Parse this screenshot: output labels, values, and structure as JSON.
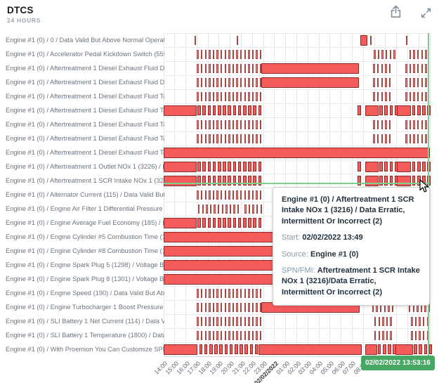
{
  "header": {
    "title": "DTCS",
    "subtitle": "24 HOURS"
  },
  "toolbar": {
    "export_icon": "export",
    "expand_icon": "expand"
  },
  "tooltip": {
    "title": "Engine #1 (0) / Aftertreatment 1 SCR Intake NOx 1 (3216) / Data Erratic, Intermittent Or Incorrect (2)",
    "start_label": "Start:",
    "start_value": "02/02/2022 13:49",
    "source_label": "Source:",
    "source_value": "Engine #1 (0)",
    "spn_label": "SPN/FMI:",
    "spn_value": "Aftertreatment 1 SCR Intake NOx 1 (3216)/Data Erratic, Intermittent Or Incorrect (2)"
  },
  "crosshair_badge": "02/02/2022 13:53:16",
  "chart_data": {
    "type": "xrange",
    "title": "DTCS",
    "subtitle": "24 HOURS",
    "x_axis": {
      "labels": [
        "14:00",
        "15:00",
        "16:00",
        "17:00",
        "18:00",
        "19:00",
        "20:00",
        "21:00",
        "22:00",
        "23:00",
        "02/02/2022",
        "01:00",
        "02:00",
        "03:00",
        "04:00",
        "05:00",
        "06:00",
        "07:00",
        "08:00"
      ],
      "bold_index": 10,
      "hours_span": 24,
      "grid": true
    },
    "colors": {
      "bar_fill": "#f45b5b",
      "bar_border": "#8d2824",
      "crosshair": "#7ecf8a",
      "badge_bg": "#45a761",
      "grid": "#e8e8e8"
    },
    "legend": "none",
    "rows": [
      {
        "label": "Engine #1 (0) / 0 / Data Valid But Above Normal Operationa...",
        "segments": [
          [
            "T",
            2.78,
            2.86
          ],
          [
            "T",
            6.58,
            6.66
          ],
          [
            "S",
            17.75,
            18.35
          ],
          [
            "T",
            18.62,
            18.7
          ],
          [
            "T",
            21.85,
            21.93
          ]
        ]
      },
      {
        "label": "Engine #1 (0) / Accelerator Pedal Kickdown Switch (559) / ...",
        "segments": [
          [
            "T",
            3.0,
            8.75
          ],
          [
            "T",
            18.95,
            20.85
          ],
          [
            "T",
            22.15,
            23.9
          ]
        ]
      },
      {
        "label": "Engine #1 (0) / Aftertreatment 1 Diesel Exhaust Fluid Dosi...",
        "segments": [
          [
            "T",
            3.0,
            8.75
          ],
          [
            "S",
            8.8,
            17.6
          ],
          [
            "T",
            18.9,
            20.6
          ],
          [
            "T",
            21.8,
            23.9
          ]
        ]
      },
      {
        "label": "Engine #1 (0) / Aftertreatment 1 Diesel Exhaust Fluid Dosi...",
        "segments": [
          [
            "T",
            3.0,
            8.75
          ],
          [
            "S",
            8.8,
            17.6
          ],
          [
            "T",
            18.9,
            20.6
          ],
          [
            "T",
            21.8,
            23.9
          ]
        ]
      },
      {
        "label": "Engine #1 (0) / Aftertreatment 1 Diesel Exhaust Fluid Tank...",
        "segments": [
          [
            "T",
            3.0,
            8.75
          ],
          [
            "T",
            18.9,
            20.6
          ],
          [
            "T",
            21.8,
            23.8
          ]
        ]
      },
      {
        "label": "Engine #1 (0) / Aftertreatment 1 Diesel Exhaust Fluid Tank...",
        "segments": [
          [
            "S",
            0,
            2.95
          ],
          [
            "K",
            3.05,
            8.8
          ],
          [
            "K",
            17.5,
            17.65
          ],
          [
            "S",
            18.15,
            19.35
          ],
          [
            "K",
            19.45,
            21.0
          ],
          [
            "S",
            21.05,
            22.3
          ],
          [
            "K",
            22.4,
            23.95
          ]
        ]
      },
      {
        "label": "Engine #1 (0) / Aftertreatment 1 Diesel Exhaust Fluid Tank...",
        "segments": [
          [
            "T",
            3.0,
            8.75
          ],
          [
            "T",
            18.9,
            20.6
          ],
          [
            "T",
            21.8,
            23.7
          ]
        ]
      },
      {
        "label": "Engine #1 (0) / Aftertreatment 1 Diesel Exhaust Fluid Tank...",
        "segments": [
          [
            "T",
            3.0,
            8.75
          ],
          [
            "T",
            18.9,
            20.6
          ],
          [
            "T",
            21.8,
            23.7
          ]
        ]
      },
      {
        "label": "Engine #1 (0) / Aftertreatment 1 Diesel Exhaust Fluid Tank...",
        "segments": [
          [
            "S",
            0,
            24
          ]
        ]
      },
      {
        "label": "Engine #1 (0) / Aftertreatment 1 Outlet NOx 1 (3226) / Dat...",
        "segments": [
          [
            "S",
            0,
            2.95
          ],
          [
            "K",
            3.05,
            8.8
          ],
          [
            "K",
            17.5,
            17.65
          ],
          [
            "S",
            18.15,
            19.35
          ],
          [
            "K",
            19.45,
            21.0
          ],
          [
            "S",
            21.05,
            22.3
          ],
          [
            "K",
            22.4,
            23.95
          ]
        ]
      },
      {
        "label": "Engine #1 (0) / Aftertreatment 1 SCR Intake NOx 1 (3216) /...",
        "segments": [
          [
            "S",
            0,
            2.95
          ],
          [
            "K",
            3.05,
            8.8
          ],
          [
            "K",
            17.5,
            17.65
          ],
          [
            "S",
            18.15,
            19.35
          ],
          [
            "K",
            19.45,
            21.0
          ],
          [
            "S",
            21.05,
            22.3
          ],
          [
            "K",
            22.4,
            23.95
          ]
        ]
      },
      {
        "label": "Engine #1 (0) / Alternator Current (115) / Data Valid But ...",
        "segments": [
          [
            "T",
            3.0,
            8.75
          ]
        ]
      },
      {
        "label": "Engine #1 (0) / Engine Air Filter 1 Differential Pressure ...",
        "segments": [
          [
            "T",
            3.1,
            6.8
          ],
          [
            "T",
            7.3,
            8.75
          ]
        ]
      },
      {
        "label": "Engine #1 (0) / Engine Average Fuel Economy (185) / Data V...",
        "segments": [
          [
            "S",
            0,
            2.95
          ],
          [
            "K",
            3.05,
            8.8
          ]
        ]
      },
      {
        "label": "Engine #1 (0) / Engine Cylinder #5 Combustion Time (1448) ...",
        "segments": [
          [
            "S",
            0,
            10.0
          ]
        ]
      },
      {
        "label": "Engine #1 (0) / Engine Cylinder #8 Combustion Time (1451) ...",
        "segments": [
          [
            "S",
            0,
            10.0
          ]
        ]
      },
      {
        "label": "Engine #1 (0) / Engine Spark Plug 5 (1298) / Voltage Below...",
        "segments": [
          [
            "S",
            0,
            10.0
          ]
        ]
      },
      {
        "label": "Engine #1 (0) / Engine Spark Plug 8 (1301) / Voltage Below...",
        "segments": [
          [
            "S",
            0,
            10.0
          ]
        ]
      },
      {
        "label": "Engine #1 (0) / Engine Speed (190) / Data Valid But Above ...",
        "segments": [
          [
            "T",
            3.0,
            8.75
          ],
          [
            "T",
            18.9,
            20.6
          ],
          [
            "T",
            22.2,
            23.7
          ]
        ]
      },
      {
        "label": "Engine #1 (0) / Engine Turbocharger 1 Boost Pressure (1127...",
        "segments": [
          [
            "T",
            3.0,
            8.75
          ],
          [
            "S",
            8.8,
            17.7
          ],
          [
            "T",
            18.8,
            20.6
          ],
          [
            "T",
            22.1,
            23.9
          ]
        ]
      },
      {
        "label": "Engine #1 (0) / SLI Battery 1 Net Current (114) / Data Val...",
        "segments": [
          [
            "T",
            3.0,
            8.75
          ],
          [
            "T",
            19.0,
            20.7
          ],
          [
            "T",
            22.3,
            23.95
          ]
        ]
      },
      {
        "label": "Engine #1 (0) / SLI Battery 1 Temperature (1800) / Data Va...",
        "segments": [
          [
            "T",
            3.0,
            8.75
          ],
          [
            "T",
            19.0,
            20.7
          ],
          [
            "T",
            22.3,
            23.95
          ]
        ]
      },
      {
        "label": "Engine #1 (0) / With Proemion You Can Customize SPN Descri...",
        "segments": [
          [
            "S",
            0,
            3.04
          ],
          [
            "K",
            3.2,
            8.35
          ],
          [
            "S",
            8.55,
            17.85
          ],
          [
            "S",
            18.15,
            19.25
          ],
          [
            "K",
            19.3,
            20.85
          ],
          [
            "S",
            20.9,
            22.45
          ],
          [
            "K",
            22.55,
            23.95
          ]
        ]
      }
    ]
  }
}
